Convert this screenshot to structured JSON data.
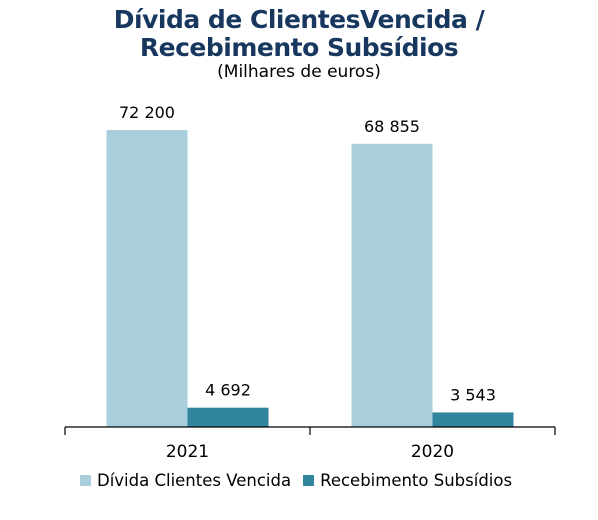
{
  "chart_data": {
    "type": "bar",
    "title_line1": "Dívida de ClientesVencida  /",
    "title_line2": "Recebimento Subsídios",
    "subtitle": "(Milhares de euros)",
    "categories": [
      "2021",
      "2020"
    ],
    "series": [
      {
        "name": "Dívida Clientes Vencida",
        "values": [
          72200,
          68855
        ],
        "labels": [
          "72 200",
          "68 855"
        ],
        "color": "#a9cfdd"
      },
      {
        "name": "Recebimento Subsídios",
        "values": [
          4692,
          3543
        ],
        "labels": [
          "4 692",
          "3 543"
        ],
        "color": "#31859c"
      }
    ],
    "ylim": [
      0,
      80000
    ],
    "grid": false,
    "legend_position": "bottom"
  }
}
